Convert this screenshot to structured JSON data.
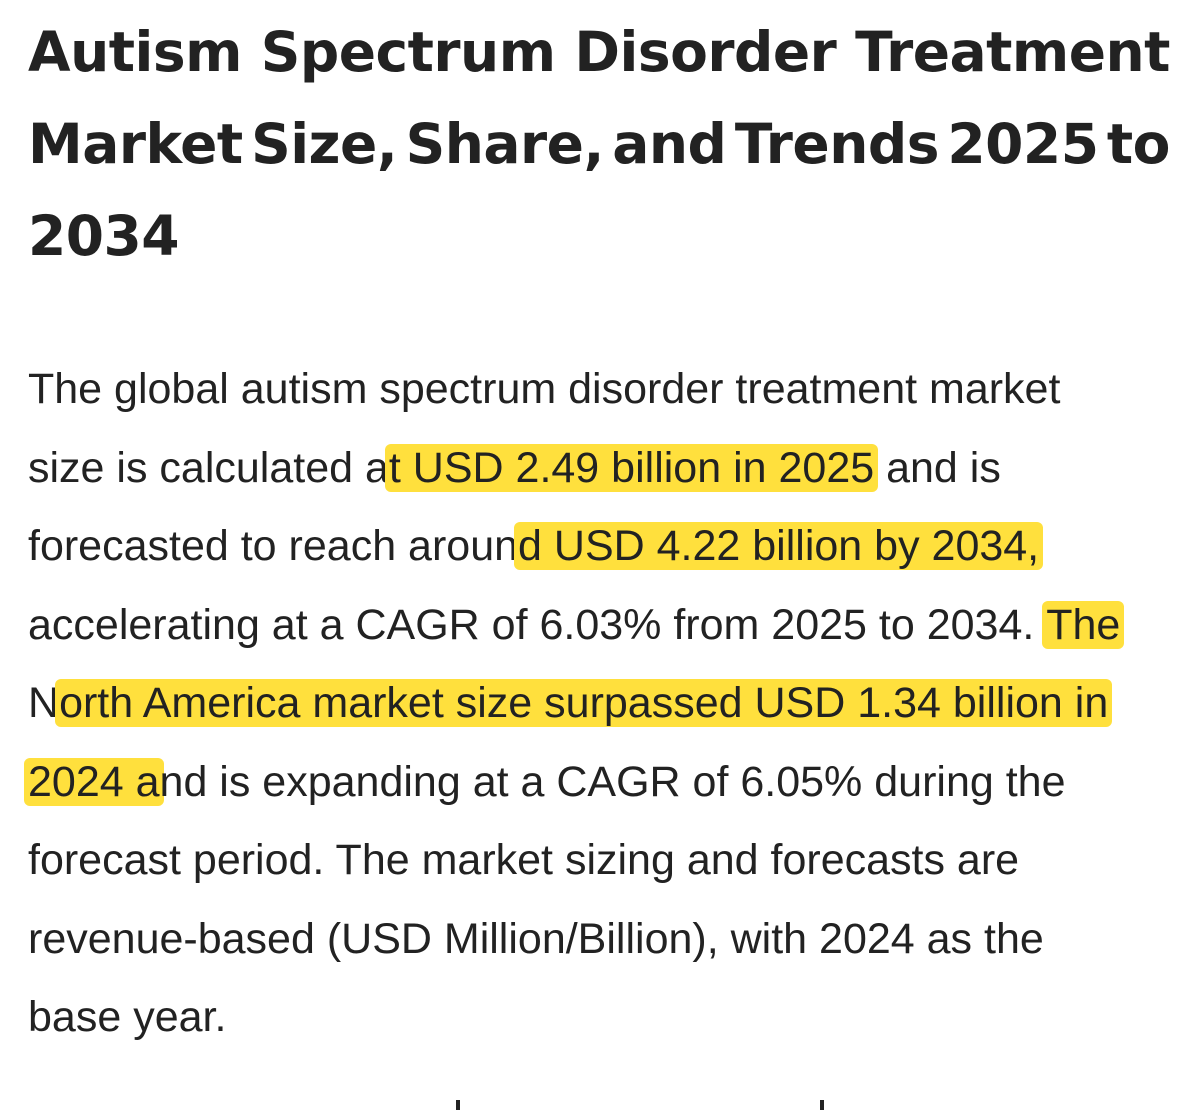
{
  "headline": {
    "row1_words": [
      "Autism",
      "Spectrum",
      "Disorder",
      "Treatment"
    ],
    "row2_words": [
      "Market",
      "Size,",
      "Share,",
      "and",
      "Trends",
      "2025",
      "to"
    ],
    "row3": "2034"
  },
  "paragraph": {
    "l1": "The global autism spectrum disorder treatment market",
    "l2_a": "size is calculated a",
    "l2_b": "t USD 2.49 billion in 2025",
    "l2_c": " and is",
    "l3_a": "forecasted to reach aroun",
    "l3_b": "d USD 4.22 billion by 2034,",
    "l4_a": "accelerating at a CAGR of 6.03% from 2025 to 2034. ",
    "l4_b": "The",
    "l5_a": "N",
    "l5_b": "orth America market size surpassed USD 1.34 billion in",
    "l6_a": "2024 a",
    "l6_b": "nd is expanding at a CAGR of 6.05% during the",
    "l7": "forecast period. The market sizing and forecasts are",
    "l8": "revenue-based (USD Million/Billion), with 2024 as the",
    "l9": "base year."
  },
  "colors": {
    "highlight": "#ffe03d",
    "text": "#222222",
    "background": "#ffffff"
  }
}
